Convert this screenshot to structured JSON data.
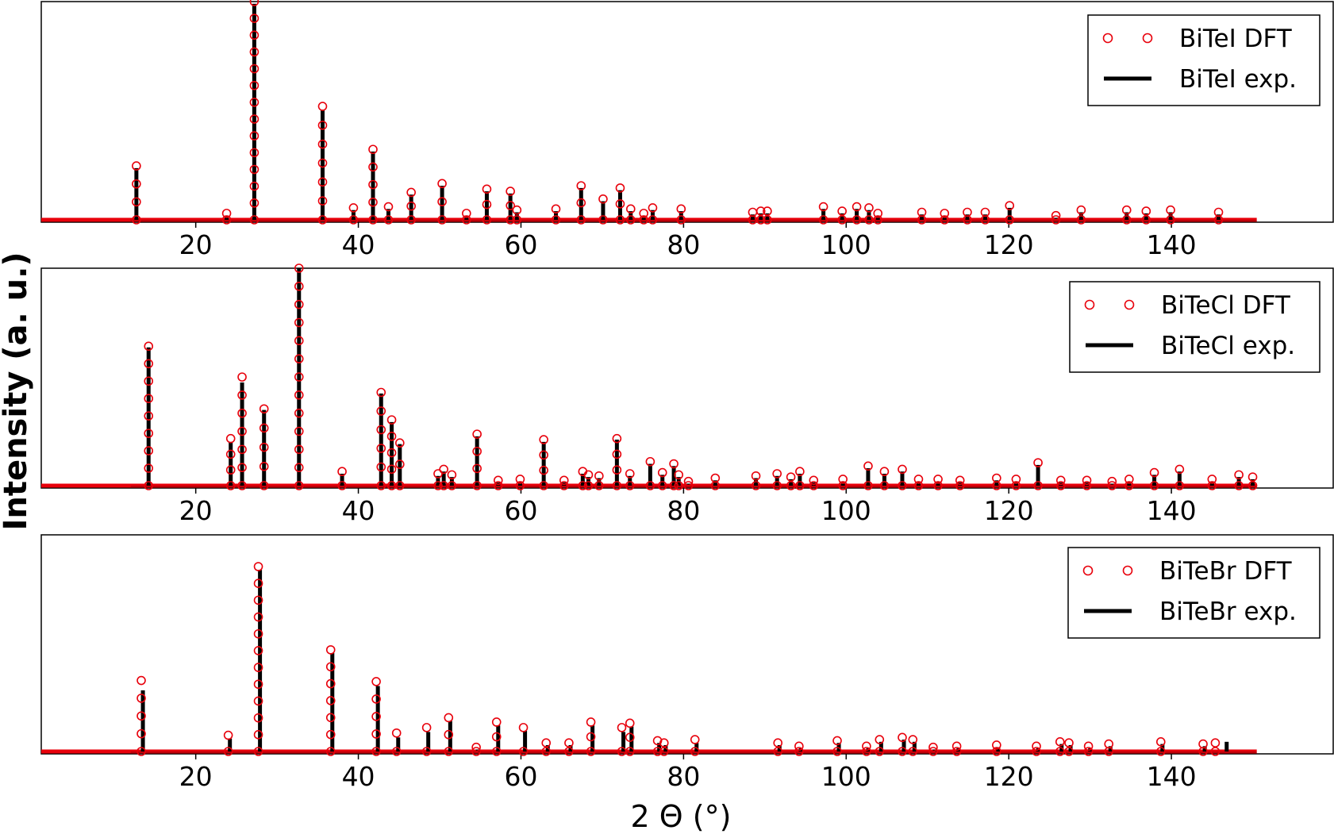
{
  "figure": {
    "xlabel": "2 Θ (°)",
    "ylabel": "Intensity (a. u.)"
  },
  "colors": {
    "dft": "#e8000b",
    "exp": "#000000",
    "frame": "#000000"
  },
  "chart_data": [
    {
      "type": "line",
      "title": "",
      "xlabel": "",
      "ylabel": "",
      "xlim": [
        1,
        160
      ],
      "ylim": [
        0,
        1.0
      ],
      "xticks": [
        20,
        40,
        60,
        80,
        100,
        120,
        140
      ],
      "grid": false,
      "legend": {
        "position": "top-right",
        "entries": [
          "BiTeI DFT",
          "BiTeI exp."
        ]
      },
      "series": [
        {
          "name": "BiTeI DFT",
          "style": "open-circle-markers",
          "color": "#e8000b",
          "x": [
            12.7,
            23.8,
            27.2,
            35.6,
            39.4,
            41.8,
            43.7,
            46.5,
            50.3,
            53.3,
            55.8,
            58.7,
            59.5,
            64.3,
            67.4,
            70.1,
            72.2,
            73.5,
            75.1,
            76.2,
            79.7,
            88.5,
            89.5,
            90.3,
            97.2,
            99.5,
            101.3,
            102.8,
            103.9,
            109.3,
            112.1,
            114.9,
            117.1,
            120.1,
            125.8,
            128.9,
            134.5,
            136.9,
            139.9,
            145.8
          ],
          "y": [
            0.255,
            0.04,
            1.0,
            0.525,
            0.065,
            0.33,
            0.07,
            0.135,
            0.175,
            0.04,
            0.15,
            0.14,
            0.055,
            0.06,
            0.165,
            0.105,
            0.155,
            0.06,
            0.04,
            0.065,
            0.06,
            0.045,
            0.05,
            0.05,
            0.07,
            0.05,
            0.07,
            0.065,
            0.04,
            0.045,
            0.04,
            0.045,
            0.045,
            0.075,
            0.03,
            0.055,
            0.055,
            0.05,
            0.055,
            0.045
          ]
        },
        {
          "name": "BiTeI exp.",
          "style": "line",
          "color": "#000000",
          "x": [
            12.7,
            23.8,
            27.2,
            35.6,
            39.4,
            41.8,
            43.7,
            46.5,
            50.3,
            53.3,
            55.8,
            58.7,
            59.5,
            64.3,
            67.4,
            70.1,
            72.2,
            73.5,
            75.1,
            76.2,
            79.7,
            88.5,
            89.5,
            90.3,
            97.2,
            99.5,
            101.3,
            102.8,
            103.9,
            109.3,
            112.1,
            114.9,
            117.1,
            120.1,
            125.8,
            128.9,
            134.5,
            136.9,
            139.9,
            145.8
          ],
          "y": [
            0.245,
            0.03,
            0.99,
            0.51,
            0.055,
            0.32,
            0.06,
            0.125,
            0.165,
            0.03,
            0.14,
            0.13,
            0.045,
            0.05,
            0.155,
            0.095,
            0.145,
            0.05,
            0.03,
            0.055,
            0.05,
            0.035,
            0.04,
            0.04,
            0.06,
            0.04,
            0.06,
            0.055,
            0.03,
            0.035,
            0.03,
            0.035,
            0.035,
            0.065,
            0.02,
            0.045,
            0.045,
            0.04,
            0.045,
            0.035
          ]
        }
      ]
    },
    {
      "type": "line",
      "title": "",
      "xlabel": "",
      "ylabel": "",
      "xlim": [
        1,
        160
      ],
      "ylim": [
        0,
        1.0
      ],
      "xticks": [
        20,
        40,
        60,
        80,
        100,
        120,
        140
      ],
      "grid": false,
      "legend": {
        "position": "top-right",
        "entries": [
          "BiTeCl DFT",
          "BiTeCl exp."
        ]
      },
      "series": [
        {
          "name": "BiTeCl DFT",
          "style": "open-circle-markers",
          "color": "#e8000b",
          "x": [
            14.2,
            24.3,
            25.7,
            28.4,
            32.7,
            38.0,
            42.8,
            44.1,
            45.1,
            49.8,
            50.5,
            51.5,
            54.6,
            57.2,
            59.9,
            62.8,
            65.3,
            67.6,
            68.3,
            69.6,
            71.8,
            73.4,
            75.9,
            77.4,
            78.8,
            79.4,
            80.6,
            83.9,
            88.9,
            91.5,
            93.2,
            94.3,
            96.0,
            99.6,
            102.7,
            104.7,
            106.9,
            108.9,
            111.3,
            114.0,
            118.5,
            120.9,
            123.6,
            126.4,
            129.6,
            132.7,
            134.8,
            137.9,
            141.0,
            145.0,
            148.3,
            150.0
          ],
          "y": [
            0.645,
            0.225,
            0.505,
            0.36,
            1.0,
            0.075,
            0.435,
            0.31,
            0.205,
            0.065,
            0.085,
            0.06,
            0.245,
            0.035,
            0.04,
            0.22,
            0.035,
            0.075,
            0.06,
            0.055,
            0.225,
            0.065,
            0.12,
            0.07,
            0.11,
            0.06,
            0.03,
            0.045,
            0.055,
            0.065,
            0.05,
            0.075,
            0.035,
            0.04,
            0.1,
            0.075,
            0.085,
            0.04,
            0.04,
            0.035,
            0.045,
            0.04,
            0.115,
            0.035,
            0.035,
            0.03,
            0.04,
            0.07,
            0.085,
            0.04,
            0.06,
            0.05
          ]
        },
        {
          "name": "BiTeCl exp.",
          "style": "line",
          "color": "#000000",
          "x": [
            14.2,
            24.3,
            25.7,
            28.4,
            32.7,
            38.0,
            42.8,
            44.1,
            45.1,
            49.8,
            50.5,
            51.5,
            54.6,
            57.2,
            59.9,
            62.8,
            65.3,
            67.6,
            68.3,
            69.6,
            71.8,
            73.4,
            75.9,
            77.4,
            78.8,
            79.4,
            80.6,
            83.9,
            88.9,
            91.5,
            93.2,
            94.3,
            96.0,
            99.6,
            102.7,
            104.7,
            106.9,
            108.9,
            111.3,
            114.0,
            118.5,
            120.9,
            123.6,
            126.4,
            129.6,
            132.7,
            134.8,
            137.9,
            141.0,
            145.0,
            148.3,
            150.0
          ],
          "y": [
            0.64,
            0.21,
            0.48,
            0.355,
            1.0,
            0.065,
            0.43,
            0.3,
            0.2,
            0.055,
            0.075,
            0.05,
            0.235,
            0.025,
            0.03,
            0.21,
            0.025,
            0.065,
            0.05,
            0.045,
            0.22,
            0.055,
            0.11,
            0.06,
            0.1,
            0.05,
            0.02,
            0.035,
            0.045,
            0.055,
            0.04,
            0.065,
            0.025,
            0.03,
            0.09,
            0.065,
            0.075,
            0.03,
            0.03,
            0.025,
            0.035,
            0.03,
            0.105,
            0.025,
            0.025,
            0.02,
            0.03,
            0.06,
            0.075,
            0.03,
            0.05,
            0.04
          ]
        }
      ]
    },
    {
      "type": "line",
      "title": "",
      "xlabel": "",
      "ylabel": "",
      "xlim": [
        1,
        160
      ],
      "ylim": [
        0,
        1.0
      ],
      "xticks": [
        20,
        40,
        60,
        80,
        100,
        120,
        140
      ],
      "grid": false,
      "legend": {
        "position": "top-right",
        "entries": [
          "BiTeBr DFT",
          "BiTeBr exp."
        ]
      },
      "series": [
        {
          "name": "BiTeBr DFT",
          "style": "open-circle-markers",
          "color": "#e8000b",
          "x": [
            13.3,
            24.0,
            27.7,
            36.6,
            42.2,
            44.7,
            48.4,
            51.1,
            54.5,
            57.0,
            60.3,
            63.1,
            65.9,
            68.6,
            72.4,
            73.4,
            76.8,
            77.6,
            81.4,
            91.6,
            94.2,
            98.9,
            102.5,
            104.1,
            106.9,
            108.2,
            110.7,
            113.6,
            118.5,
            123.4,
            126.3,
            127.4,
            129.8,
            132.3,
            138.7,
            143.9,
            145.4
          ],
          "y": [
            0.335,
            0.085,
            0.855,
            0.475,
            0.33,
            0.095,
            0.12,
            0.165,
            0.03,
            0.145,
            0.12,
            0.05,
            0.05,
            0.145,
            0.12,
            0.14,
            0.06,
            0.05,
            0.065,
            0.05,
            0.035,
            0.06,
            0.035,
            0.065,
            0.075,
            0.065,
            0.03,
            0.035,
            0.04,
            0.035,
            0.055,
            0.05,
            0.035,
            0.045,
            0.055,
            0.045,
            0.05
          ]
        },
        {
          "name": "BiTeBr exp.",
          "style": "line",
          "color": "#000000",
          "x": [
            13.5,
            24.2,
            27.9,
            36.8,
            42.4,
            44.9,
            48.6,
            51.3,
            54.7,
            57.2,
            60.5,
            63.3,
            66.1,
            68.8,
            72.6,
            73.6,
            77.0,
            77.8,
            81.6,
            91.8,
            94.4,
            99.1,
            102.7,
            104.3,
            107.1,
            108.4,
            110.9,
            113.8,
            118.7,
            123.6,
            126.5,
            127.6,
            130.0,
            132.5,
            138.9,
            144.1,
            146.8
          ],
          "y": [
            0.29,
            0.07,
            0.84,
            0.46,
            0.31,
            0.075,
            0.1,
            0.15,
            0.02,
            0.13,
            0.105,
            0.04,
            0.04,
            0.13,
            0.1,
            0.125,
            0.05,
            0.04,
            0.05,
            0.04,
            0.025,
            0.05,
            0.025,
            0.055,
            0.065,
            0.055,
            0.02,
            0.025,
            0.03,
            0.025,
            0.045,
            0.04,
            0.025,
            0.035,
            0.045,
            0.035,
            0.055
          ]
        }
      ]
    }
  ]
}
